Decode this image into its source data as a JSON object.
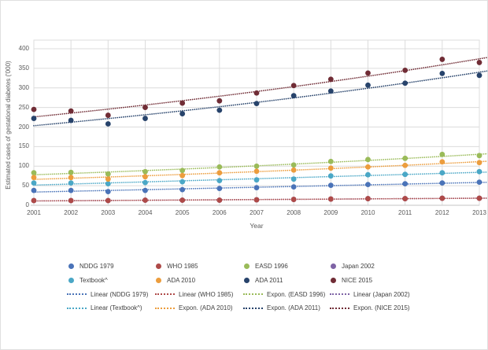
{
  "panel": {
    "background": "#ffffff",
    "border_color": "#e0e0e0"
  },
  "chart_data": {
    "type": "scatter",
    "title": "",
    "xlabel": "Year",
    "ylabel": "Estimated cases of gestational diabetes ('000)",
    "x": [
      2001,
      2002,
      2003,
      2004,
      2005,
      2006,
      2007,
      2008,
      2009,
      2010,
      2011,
      2012,
      2013
    ],
    "ylim": [
      0,
      400
    ],
    "yticks": [
      0,
      50,
      100,
      150,
      200,
      250,
      300,
      350,
      400
    ],
    "grid": true,
    "grid_color": "#dcdcdc",
    "axis_line_color": "#c6c6c6",
    "axis_text_color": "#595959",
    "legend_position": "bottom",
    "marker": "circle",
    "trend_line_style": "dotted",
    "series": [
      {
        "name": "NDDG 1979",
        "color": "#4a73b8",
        "z": 1,
        "values": [
          38,
          38,
          35,
          38,
          40,
          43,
          45,
          47,
          51,
          53,
          55,
          57,
          59
        ],
        "trend": {
          "type": "linear",
          "label": "Linear (NDDG 1979)"
        }
      },
      {
        "name": "WHO 1985",
        "color": "#ae4a48",
        "z": 2,
        "values": [
          12,
          12,
          12,
          13,
          13,
          13,
          14,
          15,
          16,
          17,
          17,
          18,
          18
        ],
        "trend": {
          "type": "linear",
          "label": "Linear (WHO 1985)"
        }
      },
      {
        "name": "EASD 1996",
        "color": "#9abb59",
        "z": 3,
        "values": [
          83,
          84,
          80,
          86,
          89,
          98,
          100,
          103,
          112,
          117,
          120,
          130,
          127
        ],
        "trend": {
          "type": "exponential",
          "label": "Expon. (EASD 1996)"
        }
      },
      {
        "name": "Japan 2002",
        "color": "#7e63a5",
        "z": 0,
        "hidden_behind": "WHO 1985",
        "values": [
          12,
          12,
          12,
          13,
          13,
          13,
          14,
          15,
          16,
          17,
          17,
          18,
          18
        ],
        "trend": {
          "type": "linear",
          "label": "Linear (Japan 2002)"
        }
      },
      {
        "name": "Textbook^",
        "color": "#4aa7c6",
        "z": 4,
        "values": [
          57,
          57,
          55,
          58,
          60,
          63,
          65,
          67,
          75,
          78,
          79,
          83,
          86
        ],
        "trend": {
          "type": "linear",
          "label": "Linear (Textbook^)"
        }
      },
      {
        "name": "ADA 2010",
        "color": "#ec9d3d",
        "z": 5,
        "values": [
          71,
          71,
          67,
          73,
          76,
          83,
          87,
          90,
          95,
          98,
          102,
          111,
          109
        ],
        "trend": {
          "type": "exponential",
          "label": "Expon. (ADA 2010)"
        }
      },
      {
        "name": "ADA 2011",
        "color": "#27436b",
        "z": 6,
        "values": [
          222,
          217,
          208,
          222,
          234,
          243,
          260,
          280,
          292,
          307,
          312,
          337,
          332
        ],
        "trend": {
          "type": "exponential",
          "label": "Expon. (ADA 2011)"
        }
      },
      {
        "name": "NICE 2015",
        "color": "#702c35",
        "z": 7,
        "values": [
          245,
          241,
          230,
          250,
          261,
          267,
          287,
          306,
          322,
          338,
          345,
          373,
          365
        ],
        "trend": {
          "type": "exponential",
          "label": "Expon. (NICE 2015)"
        }
      }
    ]
  }
}
